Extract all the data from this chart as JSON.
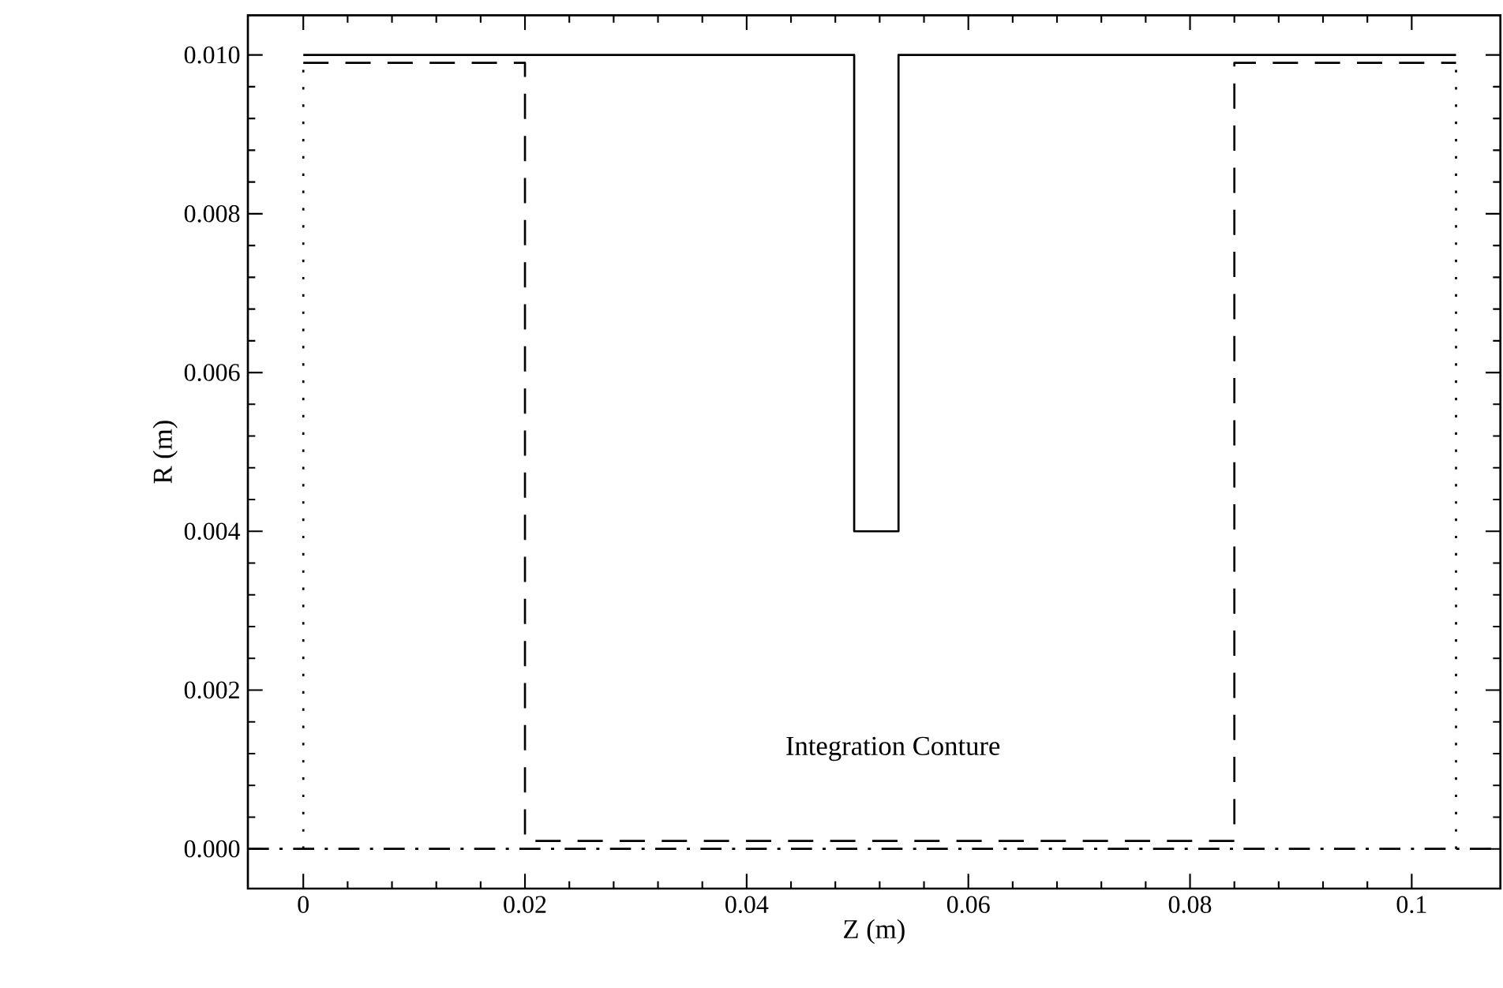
{
  "chart_data": {
    "type": "line",
    "xlabel": "Z (m)",
    "ylabel": "R (m)",
    "xlim": [
      -0.005,
      0.108
    ],
    "ylim": [
      -0.0005,
      0.0105
    ],
    "xticks": [
      0,
      0.02,
      0.04,
      0.06,
      0.08,
      0.1
    ],
    "yticks": [
      {
        "value": 0,
        "label": "0.000"
      },
      {
        "value": 0.002,
        "label": "0.002"
      },
      {
        "value": 0.004,
        "label": "0.004"
      },
      {
        "value": 0.006,
        "label": "0.006"
      },
      {
        "value": 0.008,
        "label": "0.008"
      },
      {
        "value": 0.01,
        "label": "0.010"
      }
    ],
    "grid": false,
    "marker": "none",
    "series": [
      {
        "color": "#000000",
        "line_style": "solid",
        "x": [
          0,
          0.0497,
          0.0497,
          0.0537,
          0.0537,
          0.104
        ],
        "values": [
          0.01,
          0.01,
          0.004,
          0.004,
          0.01,
          0.01
        ]
      },
      {
        "color": "#000000",
        "line_style": "dashed",
        "x": [
          0,
          0.02,
          0.02,
          0.084,
          0.084,
          0.104
        ],
        "values": [
          0.0099,
          0.0099,
          0.0001,
          0.0001,
          0.0099,
          0.0099
        ]
      },
      {
        "color": "#000000",
        "line_style": "dotted",
        "x": [
          0,
          0
        ],
        "values": [
          0,
          0.01
        ]
      },
      {
        "color": "#000000",
        "line_style": "dotted",
        "x": [
          0.104,
          0.104
        ],
        "values": [
          0,
          0.01
        ]
      },
      {
        "color": "#000000",
        "line_style": "dashdot",
        "x": [
          -0.005,
          0.108
        ],
        "values": [
          0,
          0
        ]
      }
    ],
    "annotations": [
      "Integration Conture"
    ]
  }
}
